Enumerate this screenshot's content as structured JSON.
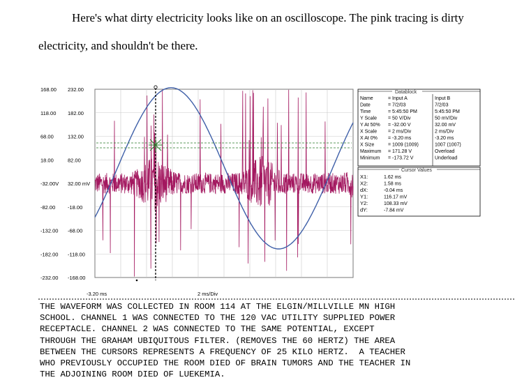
{
  "intro": {
    "line1": "Here's what dirty electricity looks like on an oscilloscope. The pink tracing is dirty",
    "line2": "electricity, and shouldn't be there."
  },
  "colors": {
    "dirty_trace": "#a3175f",
    "sine_trace": "#3e5fa8",
    "cursor_marker": "#2a7a2a",
    "grid": "#c9c9c9"
  },
  "chart_data": {
    "type": "line",
    "title": "",
    "xlabel": "",
    "ylabel": "",
    "y_ticks_left": [
      "168.00",
      "118.00",
      "68.00",
      "18.00",
      "-32.00V",
      "-82.00",
      "-132.00",
      "-182.00",
      "-232.00"
    ],
    "y_ticks_right": [
      "232.00",
      "182.00",
      "132.00",
      "82.00",
      "32.00 mV",
      "-18.00",
      "-68.00",
      "-118.00",
      "-168.00"
    ],
    "x_ticks": [
      "-3.20 ms",
      "2 ms/Div"
    ],
    "x_range_ms": [
      -3.2,
      16.8
    ],
    "ylim_input_a_V": [
      -232,
      168
    ],
    "series": [
      {
        "name": "Input A",
        "kind": "sine",
        "amplitude_V": 171.28,
        "period_ms": 16.67,
        "offset_V": 0,
        "phase_ms": 2.7
      },
      {
        "name": "Input B",
        "kind": "noise",
        "center_mV": 32,
        "typical_amplitude_mV": 40,
        "peak_mV": 232,
        "burst_period_ms": 8.33,
        "burst_center_ms": 1.4
      }
    ],
    "cursors": {
      "x1_ms": 1.62,
      "x2_ms": 1.58,
      "y1_mV": 116.17,
      "y2_mV": 108.33
    }
  },
  "datablock": {
    "title": "Datablock",
    "rows": [
      {
        "label": "Name",
        "a": "= Input A",
        "b": "Input B"
      },
      {
        "label": "Date",
        "a": "= 7/2/03",
        "b": "7/2/03"
      },
      {
        "label": "Time",
        "a": "= 5:45:50 PM",
        "b": "5:45:50 PM"
      },
      {
        "label": "Y Scale",
        "a": "= 50 V/Div",
        "b": "50 mV/Div"
      },
      {
        "label": "Y At 50%",
        "a": "= -32.00 V",
        "b": "32.00 mV"
      },
      {
        "label": "X Scale",
        "a": "= 2 ms/Div",
        "b": "2 ms/Div"
      },
      {
        "label": "X At 0%",
        "a": "= -3.20 ms",
        "b": "-3.20 ms"
      },
      {
        "label": "X Size",
        "a": "= 1009 (1009)",
        "b": "1007 (1007)"
      },
      {
        "label": "Maximum",
        "a": "= 171.28 V",
        "b": "Overload"
      },
      {
        "label": "Minimum",
        "a": "= -173.72 V",
        "b": "Underload"
      }
    ]
  },
  "cursor_values": {
    "title": "Cursor Values",
    "rows": [
      {
        "label": "X1:",
        "value": "1.62 ms"
      },
      {
        "label": "X2:",
        "value": "1.58 ms"
      },
      {
        "label": "dX:",
        "value": "-0.04 ms"
      },
      {
        "label": "Y1:",
        "value": "116.17 mV"
      },
      {
        "label": "Y2:",
        "value": "108.33 mV"
      },
      {
        "label": "dY:",
        "value": "-7.84 mV"
      }
    ]
  },
  "caption": {
    "lines": [
      "THE WAVEFORM WAS COLLECTED IN ROOM 114 AT THE ELGIN/MILLVILLE MN HIGH",
      "SCHOOL. CHANNEL 1 WAS CONNECTED TO THE 120 VAC UTILITY SUPPLIED POWER",
      "RECEPTACLE. CHANNEL 2 WAS CONNECTED TO THE SAME POTENTIAL, EXCEPT",
      "THROUGH THE GRAHAM UBIQUITOUS FILTER. (REMOVES THE 60 HERTZ) THE AREA",
      "BETWEEN THE CURSORS REPRESENTS A FREQUENCY OF 25 KILO HERTZ.  A TEACHER",
      "WHO PREVIOUSLY OCCUPIED THE ROOM DIED OF BRAIN TUMORS AND THE TEACHER IN",
      "THE ADJOINING ROOM DIED OF LUEKEMIA."
    ]
  }
}
